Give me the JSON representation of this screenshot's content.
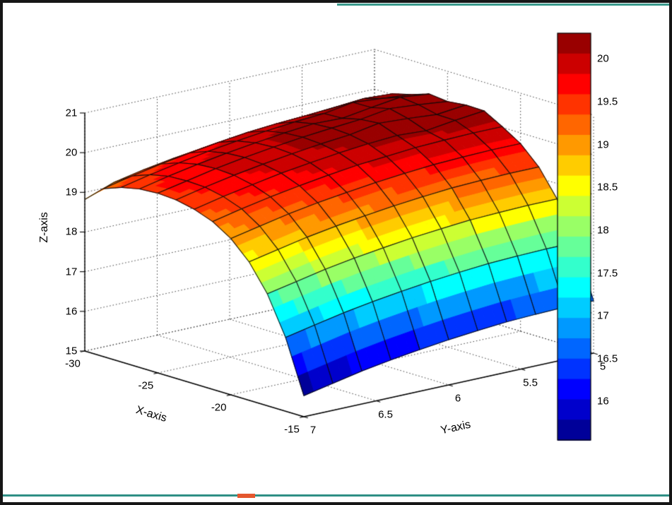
{
  "frame": {
    "background": "#ffffff",
    "border_color": "#161616"
  },
  "artifacts": {
    "top_line_color": "#3a9a8c",
    "bottom_line_color": "#2f8f85",
    "bottom_marker_color": "#e4572e"
  },
  "chart_data": {
    "type": "surface",
    "title": "",
    "xlabel": "X-axis",
    "ylabel": "Y-axis",
    "zlabel": "Z-axis",
    "xlim": [
      -30,
      -15
    ],
    "ylim": [
      5,
      7
    ],
    "zlim": [
      15,
      21
    ],
    "xticks": [
      -30,
      -25,
      -20,
      -15
    ],
    "yticks": [
      5,
      5.5,
      6,
      6.5,
      7
    ],
    "zticks": [
      15,
      16,
      17,
      18,
      19,
      20,
      21
    ],
    "grid": "dotted",
    "colormap": "jet",
    "clim": [
      15.55,
      20.3
    ],
    "color_levels": 20,
    "colorbar_ticks": [
      20,
      19.5,
      19,
      18.5,
      18,
      17.5,
      17,
      16.5,
      16
    ],
    "legend_position": "right-colorbar",
    "x": [
      -30,
      -28.75,
      -27.5,
      -26.25,
      -25,
      -23.75,
      -22.5,
      -21.25,
      -20,
      -18.75,
      -17.5,
      -16.25,
      -15
    ],
    "y": [
      5,
      5.2,
      5.4,
      5.6,
      5.8,
      6,
      6.2,
      6.4,
      6.6,
      6.8,
      7
    ],
    "z_values": [
      [
        19.73,
        19.73,
        19.71,
        19.68,
        19.62,
        19.55,
        19.46,
        19.36,
        19.24,
        19.09,
        18.82
      ],
      [
        20.02,
        20.06,
        20.0,
        19.95,
        19.91,
        19.85,
        19.76,
        19.65,
        19.53,
        19.39,
        19.23
      ],
      [
        20.14,
        20.2,
        20.26,
        20.14,
        20.09,
        20.02,
        19.93,
        19.83,
        19.7,
        19.56,
        19.4
      ],
      [
        20.29,
        20.37,
        20.27,
        20.16,
        20.18,
        20.11,
        20.02,
        19.92,
        19.8,
        19.66,
        19.5
      ],
      [
        20.24,
        20.32,
        20.38,
        20.27,
        20.21,
        20.14,
        20.05,
        19.95,
        19.83,
        19.68,
        19.53
      ],
      [
        20.29,
        20.21,
        20.27,
        20.31,
        20.18,
        20.11,
        20.02,
        19.92,
        19.8,
        19.66,
        19.5
      ],
      [
        20.28,
        20.2,
        20.1,
        20.14,
        20.09,
        20.02,
        19.93,
        19.83,
        19.7,
        19.56,
        19.4
      ],
      [
        20.02,
        20.02,
        20.0,
        19.97,
        19.91,
        19.85,
        19.76,
        19.65,
        19.53,
        19.39,
        19.23
      ],
      [
        19.73,
        19.73,
        19.71,
        19.68,
        19.62,
        19.55,
        19.46,
        19.36,
        19.24,
        19.09,
        18.94
      ],
      [
        19.28,
        19.28,
        19.26,
        19.23,
        19.17,
        19.1,
        19.01,
        18.91,
        18.79,
        18.64,
        18.49
      ],
      [
        18.61,
        18.61,
        18.59,
        18.56,
        18.5,
        18.43,
        18.34,
        18.24,
        18.12,
        17.97,
        17.82
      ],
      [
        17.65,
        17.65,
        17.63,
        17.6,
        17.54,
        17.47,
        17.38,
        17.28,
        17.16,
        17.01,
        16.86
      ],
      [
        16.32,
        16.32,
        16.3,
        16.27,
        16.21,
        16.14,
        16.05,
        15.95,
        15.83,
        15.68,
        15.53
      ]
    ]
  }
}
